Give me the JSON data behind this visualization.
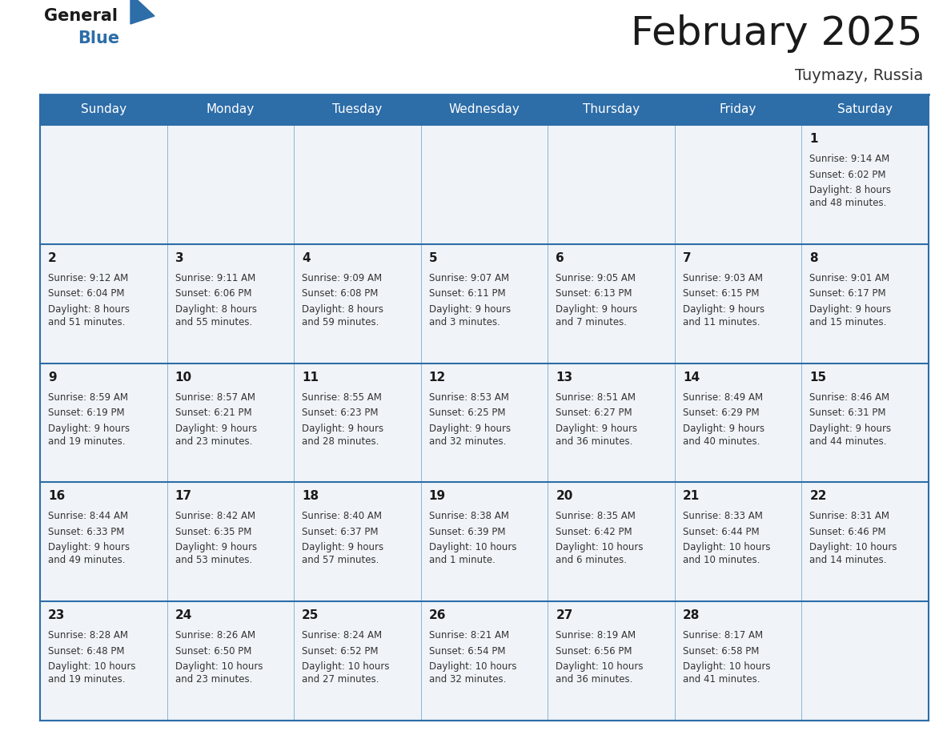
{
  "title": "February 2025",
  "subtitle": "Tuymazy, Russia",
  "days_of_week": [
    "Sunday",
    "Monday",
    "Tuesday",
    "Wednesday",
    "Thursday",
    "Friday",
    "Saturday"
  ],
  "header_bg": "#2d6da8",
  "header_text": "#ffffff",
  "cell_bg": "#f0f4f8",
  "day_num_color": "#1a1a1a",
  "info_color": "#333333",
  "border_color": "#2d6da8",
  "sep_color": "#7aaad4",
  "title_color": "#1a1a1a",
  "subtitle_color": "#333333",
  "calendar_data": [
    [
      {
        "day": null
      },
      {
        "day": null
      },
      {
        "day": null
      },
      {
        "day": null
      },
      {
        "day": null
      },
      {
        "day": null
      },
      {
        "day": 1,
        "sunrise": "9:14 AM",
        "sunset": "6:02 PM",
        "daylight": "8 hours\nand 48 minutes."
      }
    ],
    [
      {
        "day": 2,
        "sunrise": "9:12 AM",
        "sunset": "6:04 PM",
        "daylight": "8 hours\nand 51 minutes."
      },
      {
        "day": 3,
        "sunrise": "9:11 AM",
        "sunset": "6:06 PM",
        "daylight": "8 hours\nand 55 minutes."
      },
      {
        "day": 4,
        "sunrise": "9:09 AM",
        "sunset": "6:08 PM",
        "daylight": "8 hours\nand 59 minutes."
      },
      {
        "day": 5,
        "sunrise": "9:07 AM",
        "sunset": "6:11 PM",
        "daylight": "9 hours\nand 3 minutes."
      },
      {
        "day": 6,
        "sunrise": "9:05 AM",
        "sunset": "6:13 PM",
        "daylight": "9 hours\nand 7 minutes."
      },
      {
        "day": 7,
        "sunrise": "9:03 AM",
        "sunset": "6:15 PM",
        "daylight": "9 hours\nand 11 minutes."
      },
      {
        "day": 8,
        "sunrise": "9:01 AM",
        "sunset": "6:17 PM",
        "daylight": "9 hours\nand 15 minutes."
      }
    ],
    [
      {
        "day": 9,
        "sunrise": "8:59 AM",
        "sunset": "6:19 PM",
        "daylight": "9 hours\nand 19 minutes."
      },
      {
        "day": 10,
        "sunrise": "8:57 AM",
        "sunset": "6:21 PM",
        "daylight": "9 hours\nand 23 minutes."
      },
      {
        "day": 11,
        "sunrise": "8:55 AM",
        "sunset": "6:23 PM",
        "daylight": "9 hours\nand 28 minutes."
      },
      {
        "day": 12,
        "sunrise": "8:53 AM",
        "sunset": "6:25 PM",
        "daylight": "9 hours\nand 32 minutes."
      },
      {
        "day": 13,
        "sunrise": "8:51 AM",
        "sunset": "6:27 PM",
        "daylight": "9 hours\nand 36 minutes."
      },
      {
        "day": 14,
        "sunrise": "8:49 AM",
        "sunset": "6:29 PM",
        "daylight": "9 hours\nand 40 minutes."
      },
      {
        "day": 15,
        "sunrise": "8:46 AM",
        "sunset": "6:31 PM",
        "daylight": "9 hours\nand 44 minutes."
      }
    ],
    [
      {
        "day": 16,
        "sunrise": "8:44 AM",
        "sunset": "6:33 PM",
        "daylight": "9 hours\nand 49 minutes."
      },
      {
        "day": 17,
        "sunrise": "8:42 AM",
        "sunset": "6:35 PM",
        "daylight": "9 hours\nand 53 minutes."
      },
      {
        "day": 18,
        "sunrise": "8:40 AM",
        "sunset": "6:37 PM",
        "daylight": "9 hours\nand 57 minutes."
      },
      {
        "day": 19,
        "sunrise": "8:38 AM",
        "sunset": "6:39 PM",
        "daylight": "10 hours\nand 1 minute."
      },
      {
        "day": 20,
        "sunrise": "8:35 AM",
        "sunset": "6:42 PM",
        "daylight": "10 hours\nand 6 minutes."
      },
      {
        "day": 21,
        "sunrise": "8:33 AM",
        "sunset": "6:44 PM",
        "daylight": "10 hours\nand 10 minutes."
      },
      {
        "day": 22,
        "sunrise": "8:31 AM",
        "sunset": "6:46 PM",
        "daylight": "10 hours\nand 14 minutes."
      }
    ],
    [
      {
        "day": 23,
        "sunrise": "8:28 AM",
        "sunset": "6:48 PM",
        "daylight": "10 hours\nand 19 minutes."
      },
      {
        "day": 24,
        "sunrise": "8:26 AM",
        "sunset": "6:50 PM",
        "daylight": "10 hours\nand 23 minutes."
      },
      {
        "day": 25,
        "sunrise": "8:24 AM",
        "sunset": "6:52 PM",
        "daylight": "10 hours\nand 27 minutes."
      },
      {
        "day": 26,
        "sunrise": "8:21 AM",
        "sunset": "6:54 PM",
        "daylight": "10 hours\nand 32 minutes."
      },
      {
        "day": 27,
        "sunrise": "8:19 AM",
        "sunset": "6:56 PM",
        "daylight": "10 hours\nand 36 minutes."
      },
      {
        "day": 28,
        "sunrise": "8:17 AM",
        "sunset": "6:58 PM",
        "daylight": "10 hours\nand 41 minutes."
      },
      {
        "day": null
      }
    ]
  ]
}
